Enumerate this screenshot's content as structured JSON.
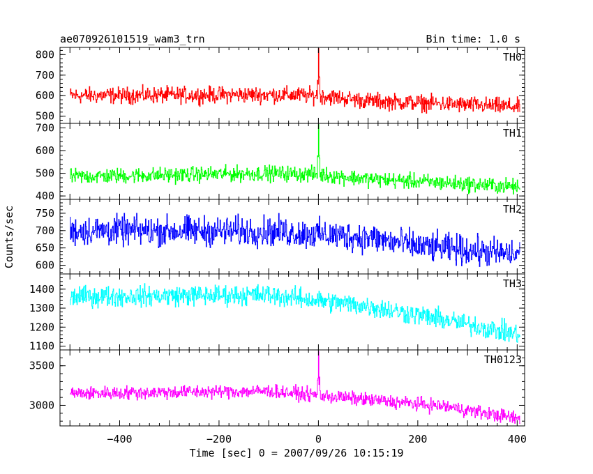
{
  "header": {
    "source": "ae070926101519_wam3_trn",
    "bin_time": "Bin time: 1.0 s"
  },
  "chart_data": {
    "type": "line",
    "xlabel": "Time [sec] 0 = 2007/09/26 10:15:19",
    "ylabel": "Counts/sec",
    "xlim": [
      -520,
      415
    ],
    "xticks": [
      -400,
      -200,
      0,
      200,
      400
    ],
    "x_data_range": [
      -500,
      405
    ],
    "bin": 1.0,
    "panels": [
      {
        "name": "TH0",
        "color": "#ff0000",
        "ylim": [
          465,
          835
        ],
        "yticks": [
          500,
          600,
          700,
          800
        ],
        "trend": [
          [
            -500,
            600
          ],
          [
            -100,
            605
          ],
          [
            0,
            600
          ],
          [
            100,
            575
          ],
          [
            405,
            545
          ]
        ],
        "noise": 28,
        "spike": {
          "x": 0,
          "peak": 830
        }
      },
      {
        "name": "TH1",
        "color": "#00ff00",
        "ylim": [
          385,
          720
        ],
        "yticks": [
          400,
          500,
          600,
          700
        ],
        "trend": [
          [
            -500,
            485
          ],
          [
            -100,
            500
          ],
          [
            0,
            495
          ],
          [
            100,
            475
          ],
          [
            405,
            440
          ]
        ],
        "noise": 24,
        "spike": {
          "x": 0,
          "peak": 715
        }
      },
      {
        "name": "TH2",
        "color": "#0000ff",
        "ylim": [
          575,
          790
        ],
        "yticks": [
          600,
          650,
          700,
          750
        ],
        "trend": [
          [
            -500,
            700
          ],
          [
            -100,
            698
          ],
          [
            100,
            680
          ],
          [
            200,
            655
          ],
          [
            405,
            630
          ]
        ],
        "noise": 30,
        "spike": null
      },
      {
        "name": "TH3",
        "color": "#00ffff",
        "ylim": [
          1080,
          1480
        ],
        "yticks": [
          1100,
          1200,
          1300,
          1400
        ],
        "trend": [
          [
            -500,
            1360
          ],
          [
            -100,
            1370
          ],
          [
            100,
            1310
          ],
          [
            250,
            1240
          ],
          [
            405,
            1160
          ]
        ],
        "noise": 38,
        "spike": null
      },
      {
        "name": "TH0123",
        "color": "#ff00ff",
        "ylim": [
          2740,
          3700
        ],
        "yticks": [
          3000,
          3500
        ],
        "trend": [
          [
            -500,
            3150
          ],
          [
            -100,
            3180
          ],
          [
            100,
            3070
          ],
          [
            250,
            2990
          ],
          [
            405,
            2830
          ]
        ],
        "noise": 60,
        "spike": {
          "x": 0,
          "peak": 3680
        }
      }
    ]
  }
}
